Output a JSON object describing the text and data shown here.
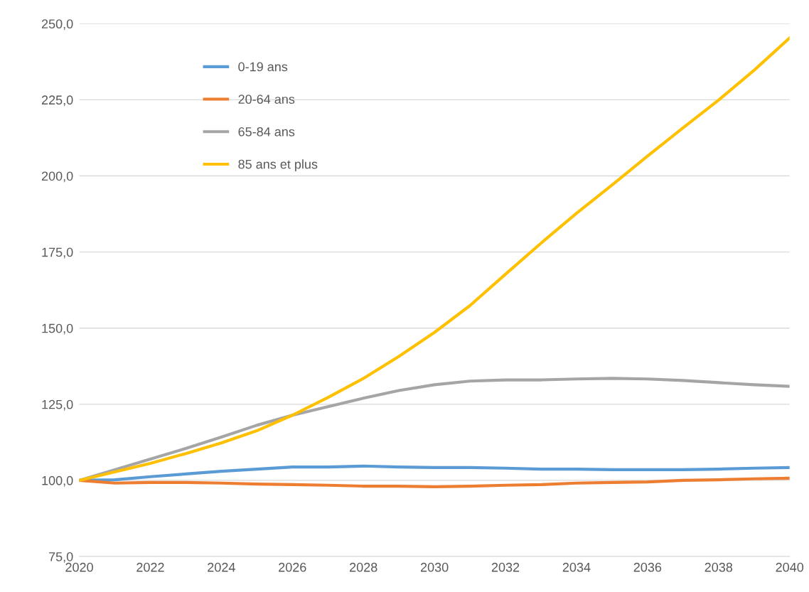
{
  "chart_data": {
    "type": "line",
    "x": [
      2020,
      2021,
      2022,
      2023,
      2024,
      2025,
      2026,
      2027,
      2028,
      2029,
      2030,
      2031,
      2032,
      2033,
      2034,
      2035,
      2036,
      2037,
      2038,
      2039,
      2040
    ],
    "series": [
      {
        "name": "0-19 ans",
        "color": "#5b9bd5",
        "values": [
          100,
          100.2,
          101.2,
          102.1,
          103,
          103.7,
          104.4,
          104.4,
          104.7,
          104.4,
          104.2,
          104.2,
          104,
          103.7,
          103.7,
          103.5,
          103.5,
          103.5,
          103.7,
          104,
          104.2
        ]
      },
      {
        "name": "20-64 ans",
        "color": "#ed7d31",
        "values": [
          100,
          99.1,
          99.3,
          99.3,
          99.1,
          98.8,
          98.6,
          98.4,
          98.1,
          98.1,
          97.9,
          98.1,
          98.4,
          98.6,
          99.1,
          99.3,
          99.5,
          100,
          100.2,
          100.5,
          100.7
        ]
      },
      {
        "name": "65-84 ans",
        "color": "#a5a5a5",
        "values": [
          100,
          103.5,
          107,
          110.5,
          114.2,
          118.1,
          121.4,
          124.2,
          127,
          129.5,
          131.4,
          132.6,
          133,
          133,
          133.3,
          133.5,
          133.3,
          132.8,
          132.1,
          131.4,
          130.9
        ]
      },
      {
        "name": "85 ans et plus",
        "color": "#ffc000",
        "values": [
          100,
          102.8,
          105.6,
          108.8,
          112.3,
          116.3,
          121.4,
          127.2,
          133.5,
          140.7,
          148.6,
          157.4,
          167.7,
          177.9,
          187.7,
          197,
          206.5,
          215.8,
          224.9,
          234.7,
          245.3
        ]
      }
    ],
    "xlim": [
      2020,
      2040
    ],
    "xticks": [
      2020,
      2022,
      2024,
      2026,
      2028,
      2030,
      2032,
      2034,
      2036,
      2038,
      2040
    ],
    "ylim": [
      75,
      250
    ],
    "yticks": [
      {
        "value": 75,
        "label": "75,0"
      },
      {
        "value": 100,
        "label": "100,0"
      },
      {
        "value": 125,
        "label": "125,0"
      },
      {
        "value": 150,
        "label": "150,0"
      },
      {
        "value": 175,
        "label": "175,0"
      },
      {
        "value": 200,
        "label": "200,0"
      },
      {
        "value": 225,
        "label": "225,0"
      },
      {
        "value": 250,
        "label": "250,0"
      }
    ],
    "grid": "y",
    "legend": "top left",
    "marker": "none",
    "line_style": "solid"
  }
}
